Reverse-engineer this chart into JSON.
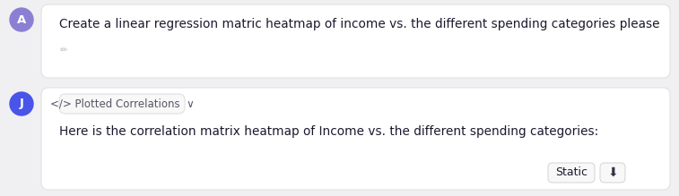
{
  "bg_color": "#f0f0f2",
  "card_color": "#ffffff",
  "card_border": "#e2e2e2",
  "user_avatar_color": "#8b7fd4",
  "user_avatar_label": "A",
  "julius_avatar_color": "#4a54e8",
  "julius_avatar_label": "J",
  "user_message": "Create a linear regression matric heatmap of income vs. the different spending categories please",
  "edit_icon_color": "#c0c0c8",
  "code_badge_bg": "#f8f8f8",
  "code_badge_border": "#e0e0e0",
  "badge_text": "</> Plotted Correlations  ∨",
  "julius_message": "Here is the correlation matrix heatmap of Income vs. the different spending categories:",
  "static_btn_text": "Static",
  "static_btn_border": "#d8d8d8",
  "download_btn_border": "#d8d8d8",
  "text_color": "#1a1a2e",
  "badge_text_color": "#555566",
  "font_size_main": 9.8,
  "font_size_badge": 8.5,
  "font_size_btn": 9.0,
  "figw": 7.57,
  "figh": 2.19,
  "dpi": 100
}
